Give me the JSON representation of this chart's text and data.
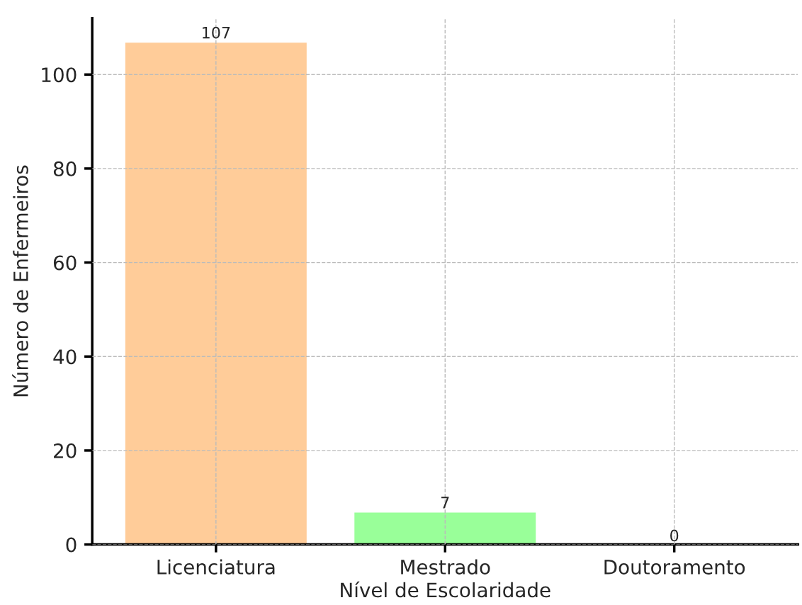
{
  "chart_data": {
    "type": "bar",
    "xlabel": "Nível de Escolaridade",
    "ylabel": "Número de Enfermeiros",
    "categories": [
      "Licenciatura",
      "Mestrado",
      "Doutoramento"
    ],
    "values": [
      107,
      7,
      0
    ],
    "colors": [
      "#ffcc99",
      "#99ff99",
      null
    ],
    "ylim": [
      0,
      112
    ],
    "yticks": [
      0,
      20,
      40,
      60,
      80,
      100
    ],
    "grid": true,
    "data_labels": true
  }
}
